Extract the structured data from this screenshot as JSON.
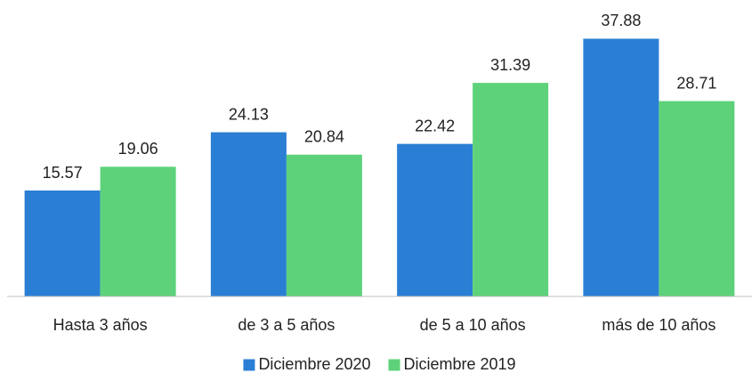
{
  "chart_data": {
    "type": "bar",
    "categories": [
      "Hasta 3 años",
      "de 3 a 5 años",
      "de 5 a 10 años",
      "más de 10 años"
    ],
    "series": [
      {
        "name": "Diciembre 2020",
        "color": "#2a7fd4",
        "values": [
          15.57,
          24.13,
          22.42,
          37.88
        ]
      },
      {
        "name": "Diciembre 2019",
        "color": "#5dd27a",
        "values": [
          19.06,
          20.84,
          31.39,
          28.71
        ]
      }
    ],
    "ylim": [
      0,
      42
    ],
    "legend": "bottom"
  }
}
